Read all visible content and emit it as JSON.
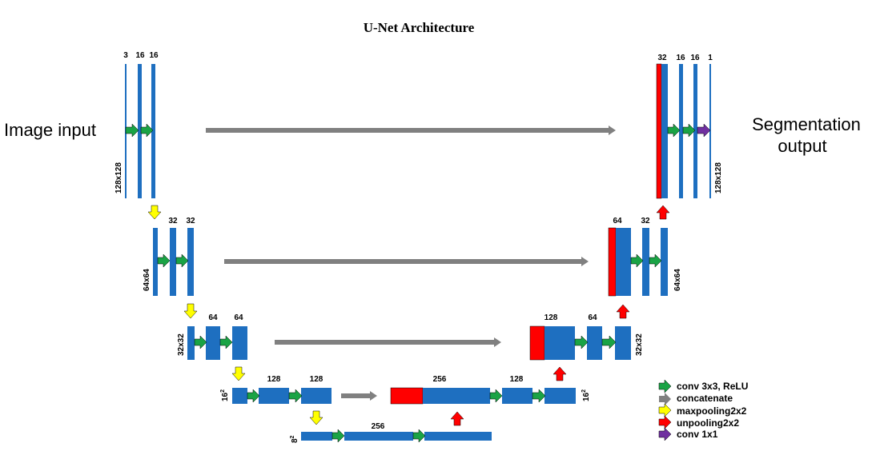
{
  "title": "U-Net Architecture",
  "input_label": "Image input",
  "output_label_line1": "Segmentation",
  "output_label_line2": "output",
  "channels": {
    "enc1": [
      "3",
      "16",
      "16"
    ],
    "enc2": [
      "32",
      "32"
    ],
    "enc3": [
      "64",
      "64"
    ],
    "enc4": [
      "128",
      "128"
    ],
    "bottleneck": "256",
    "dec4": [
      "256",
      "128"
    ],
    "dec3": [
      "128",
      "64"
    ],
    "dec2": [
      "64",
      "32"
    ],
    "dec1": [
      "32",
      "16",
      "16",
      "1"
    ]
  },
  "sizes": {
    "l1": "128x128",
    "l2": "64x64",
    "l3": "32x32",
    "l4_base": "16",
    "l5_base": "8",
    "exponent": "2"
  },
  "legend": [
    {
      "label": "conv 3x3, ReLU",
      "color": "#1aa345",
      "icon": "arrow-right"
    },
    {
      "label": "concatenate",
      "color": "#808080",
      "icon": "arrow-right"
    },
    {
      "label": "maxpooling2x2",
      "color": "#ffff00",
      "icon": "arrow-down"
    },
    {
      "label": "unpooling2x2",
      "color": "#ff0000",
      "icon": "arrow-up"
    },
    {
      "label": "conv 1x1",
      "color": "#7030a0",
      "icon": "arrow-right"
    }
  ],
  "colors": {
    "feature_map": "#1e6fc0",
    "copied_map": "#ff0000",
    "skip": "#808080",
    "conv": "#1aa345",
    "pool": "#ffff00",
    "unpool": "#ff0000",
    "conv1x1": "#7030a0"
  }
}
